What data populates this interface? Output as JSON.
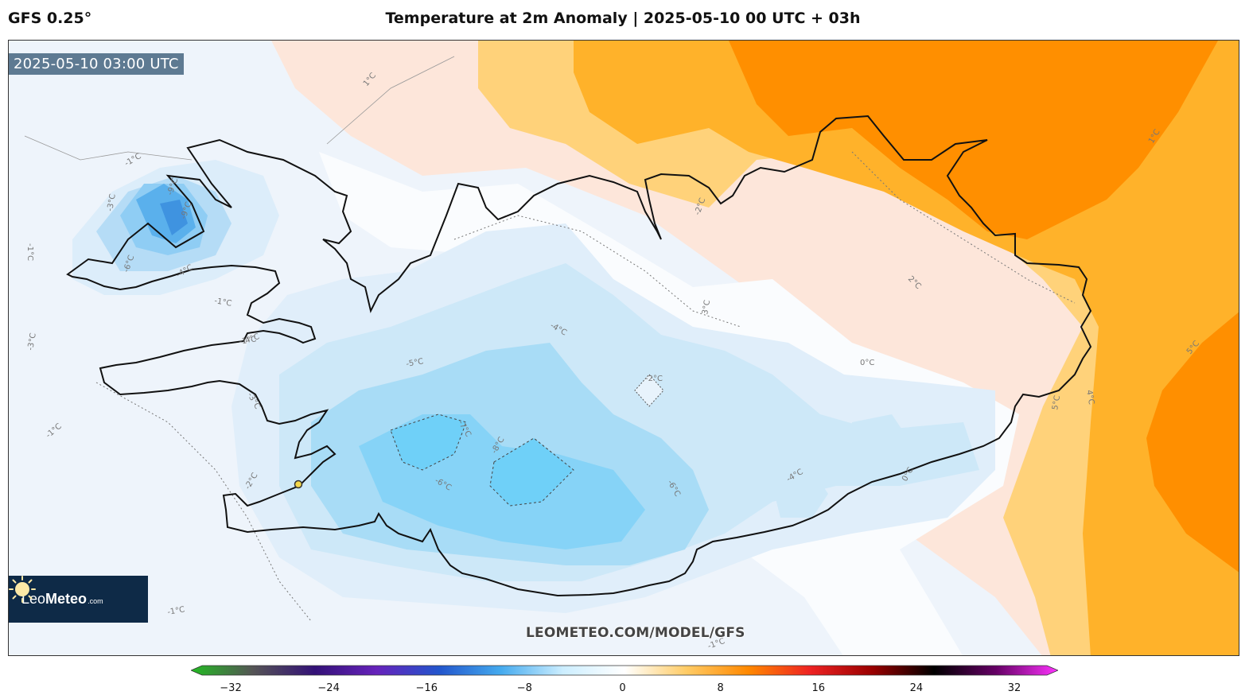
{
  "header": {
    "model": "GFS 0.25°",
    "title": "Temperature at 2m Anomaly | 2025-05-10 00 UTC + 03h"
  },
  "map": {
    "valid_time": "2025-05-10 03:00 UTC",
    "watermark": "LEOMETEO.COM/MODEL/GFS",
    "logo": {
      "leo": "Leo",
      "meteo": "Meteo",
      "com": ".com"
    },
    "contour_labels": [
      "-1°C",
      "-1°C",
      "-1°C",
      "-1°C",
      "-1°C",
      "-1°C",
      "-1°C",
      "-3°C",
      "-3°C",
      "-3°C",
      "-4°C",
      "-4°C",
      "-4°C",
      "-4°C",
      "-5°C",
      "-6°C",
      "-6°C",
      "-6°C",
      "-7°C",
      "-8°C",
      "-9°C",
      "-9°C",
      "-2°C",
      "-2°C",
      "-2°C",
      "0°C",
      "0°C",
      "1°C",
      "1°C",
      "2°C",
      "3°C",
      "4°C",
      "5°C",
      "5°C"
    ],
    "colors": {
      "ocean_neutral": "#f0f5fb",
      "cold_light": "#dcebf8",
      "cold_mid": "#b8def5",
      "cold_strong": "#7fd3f5",
      "cold_core": "#4aa3e8",
      "warm_light": "#fde3d6",
      "warm_mid": "#ffd27a",
      "warm_strong": "#ffb020",
      "warm_core": "#ff8c00"
    }
  },
  "colorbar": {
    "ticks": [
      "−32",
      "−24",
      "−16",
      "−8",
      "0",
      "8",
      "16",
      "24",
      "32"
    ],
    "range": [
      -32,
      32
    ],
    "stops": [
      "#22bb22",
      "#555555",
      "#331177",
      "#6622bb",
      "#2255cc",
      "#44aaee",
      "#cceeff",
      "#ffffff",
      "#ffcc66",
      "#ff8800",
      "#ee2222",
      "#990000",
      "#000000",
      "#660066",
      "#ff33ff"
    ]
  }
}
